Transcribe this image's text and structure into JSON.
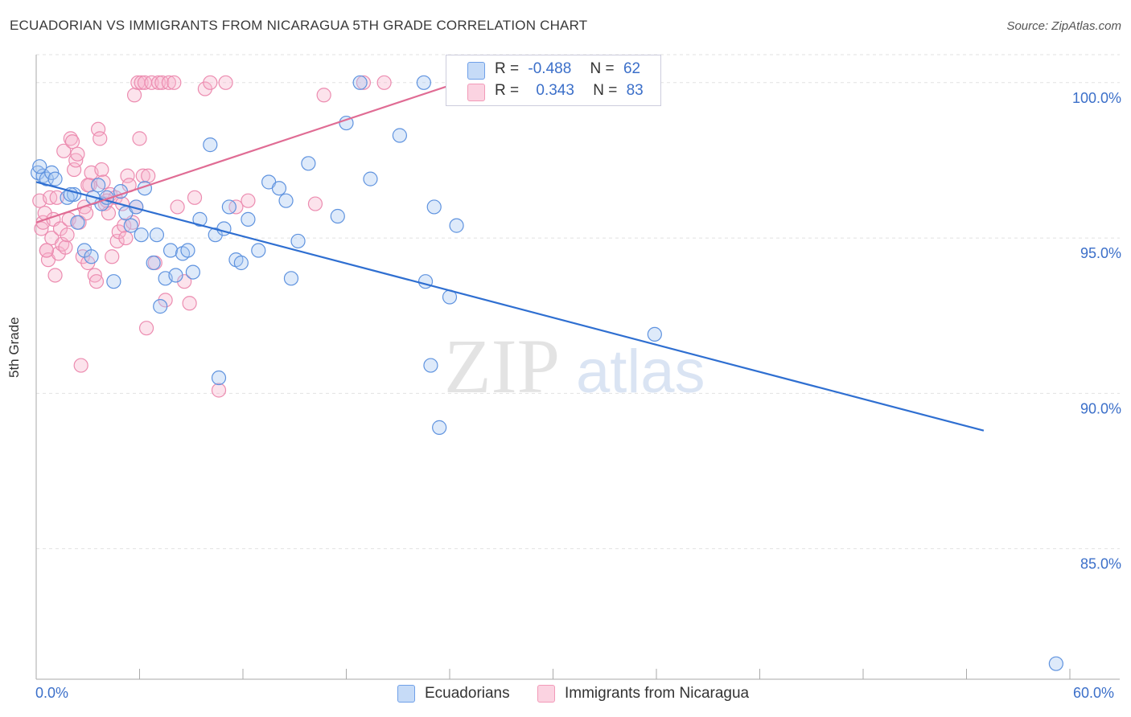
{
  "header": {
    "title": "ECUADORIAN VS IMMIGRANTS FROM NICARAGUA 5TH GRADE CORRELATION CHART",
    "source": "Source: ZipAtlas.com"
  },
  "watermark": {
    "zip": "ZIP",
    "atlas": "atlas"
  },
  "legend_stats": [
    {
      "r_label": "R =",
      "r_value": "-0.488",
      "n_label": "N =",
      "n_value": "62",
      "color": "#6fa0e8"
    },
    {
      "r_label": "R =",
      "r_value": "0.343",
      "n_label": "N =",
      "n_value": "83",
      "color": "#f29ab8"
    }
  ],
  "bottom_legend": [
    "Ecuadorians",
    "Immigrants from Nicaragua"
  ],
  "axes": {
    "x_min_label": "0.0%",
    "x_max_label": "60.0%",
    "y_label": "5th Grade"
  },
  "colors": {
    "blue": "#6fa0e8",
    "blue_line": "#2f6fd1",
    "pink": "#f29ab8",
    "pink_line": "#e06c94",
    "tick_text": "#3b6fc9"
  },
  "chart_data": {
    "type": "scatter",
    "title": "ECUADORIAN VS IMMIGRANTS FROM NICARAGUA 5TH GRADE CORRELATION CHART",
    "xlabel": "",
    "ylabel": "5th Grade",
    "xlim": [
      0,
      60
    ],
    "ylim": [
      80.8,
      100.9
    ],
    "y_ticks": [
      85,
      90,
      95,
      100
    ],
    "y_tick_labels": [
      "85.0%",
      "90.0%",
      "95.0%",
      "100.0%"
    ],
    "x_tick_labels": [
      "0.0%",
      "60.0%"
    ],
    "grid": true,
    "legend_position": "top-center",
    "series": [
      {
        "name": "Ecuadorians",
        "color": "#6fa0e8",
        "trend": {
          "x": [
            0,
            55
          ],
          "y": [
            96.8,
            88.8
          ]
        },
        "points": [
          [
            0.1,
            97.1
          ],
          [
            0.4,
            97.0
          ],
          [
            0.6,
            96.9
          ],
          [
            0.9,
            97.1
          ],
          [
            1.1,
            96.9
          ],
          [
            1.8,
            96.3
          ],
          [
            2.2,
            96.4
          ],
          [
            2.4,
            95.5
          ],
          [
            2.8,
            94.6
          ],
          [
            3.2,
            94.4
          ],
          [
            3.6,
            96.7
          ],
          [
            3.8,
            96.1
          ],
          [
            4.1,
            96.3
          ],
          [
            4.5,
            93.6
          ],
          [
            4.9,
            96.5
          ],
          [
            5.2,
            95.8
          ],
          [
            5.5,
            95.4
          ],
          [
            5.8,
            96.0
          ],
          [
            6.1,
            95.1
          ],
          [
            6.3,
            96.6
          ],
          [
            6.8,
            94.2
          ],
          [
            7.0,
            95.1
          ],
          [
            7.2,
            92.8
          ],
          [
            7.5,
            93.7
          ],
          [
            7.8,
            94.6
          ],
          [
            8.1,
            93.8
          ],
          [
            8.5,
            94.5
          ],
          [
            8.8,
            94.6
          ],
          [
            9.1,
            93.9
          ],
          [
            9.5,
            95.6
          ],
          [
            10.1,
            98.0
          ],
          [
            10.4,
            95.1
          ],
          [
            10.6,
            90.5
          ],
          [
            10.9,
            95.3
          ],
          [
            11.2,
            96.0
          ],
          [
            11.6,
            94.3
          ],
          [
            11.9,
            94.2
          ],
          [
            12.3,
            95.6
          ],
          [
            12.9,
            94.6
          ],
          [
            13.5,
            96.8
          ],
          [
            14.1,
            96.6
          ],
          [
            14.5,
            96.2
          ],
          [
            14.8,
            93.7
          ],
          [
            15.2,
            94.9
          ],
          [
            15.8,
            97.4
          ],
          [
            17.5,
            95.7
          ],
          [
            18.0,
            98.7
          ],
          [
            18.8,
            100.0
          ],
          [
            19.4,
            96.9
          ],
          [
            21.1,
            98.3
          ],
          [
            22.5,
            100.0
          ],
          [
            22.6,
            93.6
          ],
          [
            22.9,
            90.9
          ],
          [
            23.1,
            96.0
          ],
          [
            23.4,
            88.9
          ],
          [
            24.0,
            93.1
          ],
          [
            24.4,
            95.4
          ],
          [
            35.9,
            91.9
          ],
          [
            59.2,
            81.3
          ],
          [
            0.2,
            97.3
          ],
          [
            2.0,
            96.4
          ],
          [
            3.3,
            96.3
          ]
        ]
      },
      {
        "name": "Immigrants from Nicaragua",
        "color": "#f29ab8",
        "trend": {
          "x": [
            0,
            24.5
          ],
          "y": [
            95.5,
            100.0
          ]
        },
        "points": [
          [
            0.2,
            96.2
          ],
          [
            0.3,
            95.3
          ],
          [
            0.4,
            95.5
          ],
          [
            0.5,
            95.8
          ],
          [
            0.6,
            94.6
          ],
          [
            0.7,
            94.3
          ],
          [
            0.8,
            96.3
          ],
          [
            0.9,
            95.0
          ],
          [
            1.0,
            95.6
          ],
          [
            1.1,
            93.8
          ],
          [
            1.3,
            94.5
          ],
          [
            1.4,
            95.3
          ],
          [
            1.5,
            94.8
          ],
          [
            1.6,
            97.8
          ],
          [
            1.7,
            94.7
          ],
          [
            1.8,
            95.1
          ],
          [
            1.9,
            95.6
          ],
          [
            2.0,
            98.2
          ],
          [
            2.1,
            98.1
          ],
          [
            2.2,
            97.2
          ],
          [
            2.3,
            97.5
          ],
          [
            2.4,
            97.7
          ],
          [
            2.5,
            95.5
          ],
          [
            2.6,
            90.9
          ],
          [
            2.7,
            94.4
          ],
          [
            2.8,
            96.0
          ],
          [
            2.9,
            95.8
          ],
          [
            3.0,
            94.2
          ],
          [
            3.1,
            96.7
          ],
          [
            3.2,
            97.1
          ],
          [
            3.4,
            93.8
          ],
          [
            3.5,
            93.6
          ],
          [
            3.6,
            98.5
          ],
          [
            3.7,
            98.2
          ],
          [
            3.8,
            97.2
          ],
          [
            3.9,
            96.8
          ],
          [
            4.0,
            96.1
          ],
          [
            4.2,
            95.8
          ],
          [
            4.3,
            96.4
          ],
          [
            4.4,
            94.4
          ],
          [
            4.6,
            96.3
          ],
          [
            4.7,
            94.9
          ],
          [
            4.8,
            95.2
          ],
          [
            5.0,
            96.1
          ],
          [
            5.1,
            95.4
          ],
          [
            5.2,
            95.0
          ],
          [
            5.3,
            97.0
          ],
          [
            5.4,
            96.7
          ],
          [
            5.6,
            95.5
          ],
          [
            5.7,
            99.6
          ],
          [
            5.8,
            96.0
          ],
          [
            5.9,
            100.0
          ],
          [
            6.0,
            98.2
          ],
          [
            6.1,
            100.0
          ],
          [
            6.2,
            97.0
          ],
          [
            6.3,
            100.0
          ],
          [
            6.4,
            92.1
          ],
          [
            6.5,
            97.0
          ],
          [
            6.7,
            100.0
          ],
          [
            6.9,
            94.2
          ],
          [
            7.1,
            100.0
          ],
          [
            7.3,
            100.0
          ],
          [
            7.5,
            93.0
          ],
          [
            7.7,
            100.0
          ],
          [
            8.0,
            100.0
          ],
          [
            8.2,
            96.0
          ],
          [
            8.6,
            93.6
          ],
          [
            8.9,
            92.9
          ],
          [
            9.2,
            96.3
          ],
          [
            9.8,
            99.8
          ],
          [
            10.1,
            100.0
          ],
          [
            10.6,
            90.1
          ],
          [
            11.0,
            100.0
          ],
          [
            11.6,
            96.0
          ],
          [
            12.3,
            96.2
          ],
          [
            16.2,
            96.1
          ],
          [
            16.7,
            99.6
          ],
          [
            19.0,
            100.0
          ],
          [
            20.2,
            100.0
          ],
          [
            4.1,
            96.2
          ],
          [
            3.0,
            96.7
          ],
          [
            1.2,
            96.3
          ],
          [
            0.6,
            94.6
          ]
        ]
      }
    ]
  }
}
